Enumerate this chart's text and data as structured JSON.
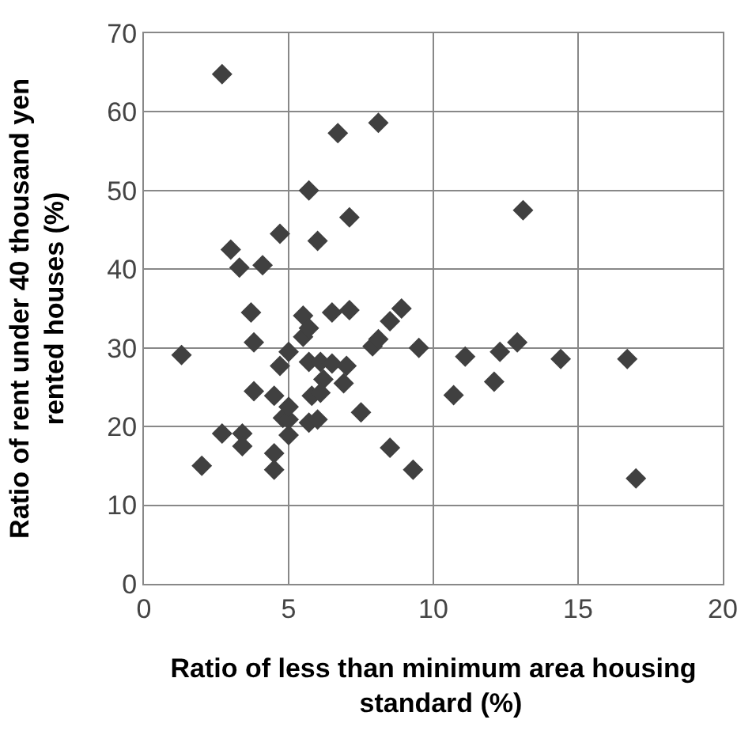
{
  "chart_data": {
    "type": "scatter",
    "xlabel": "Ratio of less than minimum area housing  standard (%)",
    "ylabel": "Ratio of rent under 40 thousand yen rented houses (%)",
    "x": [
      2.7,
      6.7,
      8.1,
      5.7,
      7.1,
      4.7,
      6.0,
      3.0,
      3.3,
      4.1,
      13.1,
      9.5,
      11.1,
      10.7,
      12.3,
      12.1,
      12.9,
      14.4,
      16.7,
      17.0,
      9.3,
      3.7,
      1.3,
      3.8,
      3.8,
      2.7,
      3.4,
      3.4,
      2.0,
      4.5,
      4.5,
      5.0,
      4.8,
      4.5,
      4.7,
      5.0,
      5.5,
      5.5,
      5.7,
      5.7,
      6.1,
      6.5,
      7.1,
      6.5,
      7.0,
      6.9,
      6.2,
      5.8,
      6.1,
      5.7,
      6.0,
      5.0,
      5.0,
      7.5,
      7.9,
      8.1,
      8.5,
      8.9,
      8.5
    ],
    "values": [
      64.8,
      57.3,
      58.6,
      50,
      46.6,
      44.5,
      43.6,
      42.5,
      40.2,
      40.5,
      47.5,
      30,
      28.9,
      24,
      29.5,
      25.7,
      30.7,
      28.6,
      28.6,
      13.4,
      14.5,
      34.5,
      29.1,
      30.7,
      24.5,
      19.1,
      19.1,
      17.5,
      15,
      16.6,
      14.5,
      18.9,
      21.1,
      23.9,
      27.7,
      29.5,
      34.1,
      31.4,
      32.5,
      28.2,
      28.2,
      34.5,
      34.8,
      28,
      27.7,
      25.5,
      26,
      23.9,
      24.3,
      20.5,
      20.9,
      20.9,
      22.5,
      21.8,
      30.2,
      31.1,
      33.4,
      35,
      17.3
    ],
    "color": "#404040",
    "marker": "diamond",
    "grid": true,
    "xlim": [
      0,
      20
    ],
    "xticks": [
      0,
      5,
      10,
      15,
      20
    ],
    "ylim": [
      0,
      70
    ],
    "yticks": [
      0,
      10,
      20,
      30,
      40,
      50,
      60,
      70
    ]
  }
}
